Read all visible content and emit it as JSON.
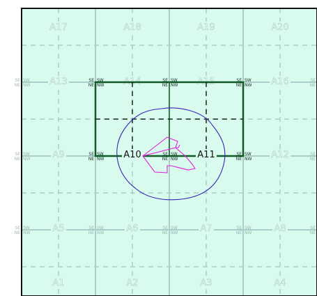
{
  "map": {
    "colors": {
      "background": "#d9fbee",
      "grid": "#a9cfca",
      "highlight_box": "#0f5a26",
      "highlight_dash": "#1a2a1e",
      "outline_blue": "#3a22b8",
      "outline_magenta": "#e020d8",
      "frame": "#111111"
    },
    "cells": [
      {
        "id": "A1",
        "label": "A1",
        "highlight": false
      },
      {
        "id": "A2",
        "label": "A2",
        "highlight": false
      },
      {
        "id": "A3",
        "label": "A3",
        "highlight": false
      },
      {
        "id": "A4",
        "label": "A4",
        "highlight": false
      },
      {
        "id": "A5",
        "label": "A5",
        "highlight": false
      },
      {
        "id": "A6",
        "label": "A6",
        "highlight": false
      },
      {
        "id": "A7",
        "label": "A7",
        "highlight": false
      },
      {
        "id": "A8",
        "label": "A8",
        "highlight": false
      },
      {
        "id": "A9",
        "label": "A9",
        "highlight": false
      },
      {
        "id": "A10",
        "label": "A10",
        "highlight": true
      },
      {
        "id": "A11",
        "label": "A11",
        "highlight": true
      },
      {
        "id": "A12",
        "label": "A12",
        "highlight": false
      },
      {
        "id": "A13",
        "label": "A13",
        "highlight": false
      },
      {
        "id": "A14",
        "label": "A14",
        "highlight": false
      },
      {
        "id": "A15",
        "label": "A15",
        "highlight": false
      },
      {
        "id": "A16",
        "label": "A16",
        "highlight": false
      },
      {
        "id": "A17",
        "label": "A17",
        "highlight": false
      },
      {
        "id": "A18",
        "label": "A18",
        "highlight": false
      },
      {
        "id": "A19",
        "label": "A19",
        "highlight": false
      },
      {
        "id": "A20",
        "label": "A20",
        "highlight": false
      }
    ],
    "quadrant_labels": {
      "top_left": "SW",
      "top_right": "SE",
      "bottom_left": "NW",
      "bottom_right": "NE"
    }
  }
}
